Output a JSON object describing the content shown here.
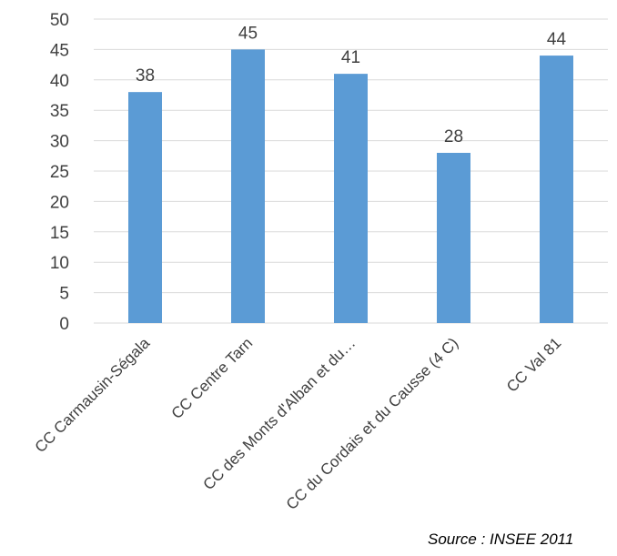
{
  "chart_data": {
    "type": "bar",
    "categories": [
      "CC Carmausin-Ségala",
      "CC Centre Tarn",
      "CC des Monts d'Alban et du…",
      "CC du Cordais et du Causse (4 C)",
      "CC Val 81"
    ],
    "values": [
      38,
      45,
      41,
      28,
      44
    ],
    "data_labels": [
      "38",
      "45",
      "41",
      "28",
      "44"
    ],
    "ylim": [
      0,
      50
    ],
    "yticks": [
      0,
      5,
      10,
      15,
      20,
      25,
      30,
      35,
      40,
      45,
      50
    ],
    "grid": true,
    "bar_color": "#5b9bd5",
    "grid_color": "#d9d9d9"
  },
  "source": "Source : INSEE 2011"
}
